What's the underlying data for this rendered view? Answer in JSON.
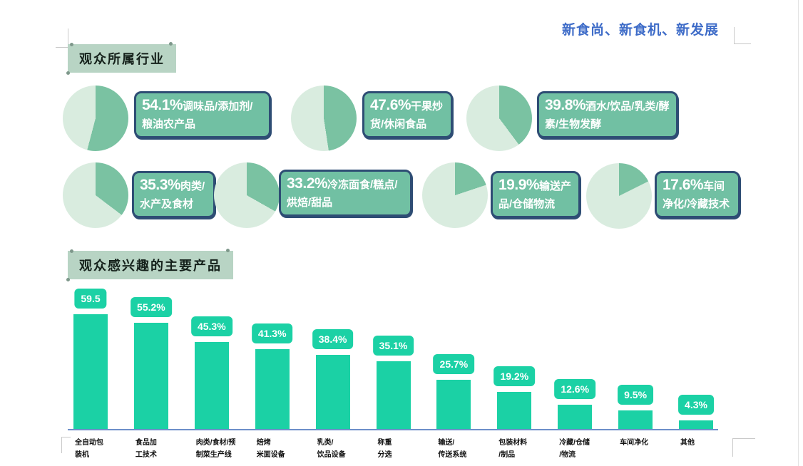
{
  "page": {
    "slogan": "新食尚、新食机、新发展"
  },
  "sections": {
    "industries_title": "观众所属行业",
    "products_title": "观众感兴趣的主要产品"
  },
  "colors": {
    "slogan_text": "#3e6cc8",
    "banner_fill": "#b8d4c4",
    "pie_dark": "#7ac2a2",
    "pie_light": "#d9ecdf",
    "callout_fill": "#71c0a3",
    "callout_border": "#2e4d74",
    "bar_fill": "#1bd1a5",
    "axis_line": "#6d8fc9"
  },
  "chart_data": [
    {
      "type": "pie",
      "title": "观众所属行业",
      "items": [
        {
          "pct": "54.1%",
          "value": 54.1,
          "label": "调味品/添加剂/粮油农产品"
        },
        {
          "pct": "47.6%",
          "value": 47.6,
          "label": "干果炒货/休闲食品"
        },
        {
          "pct": "39.8%",
          "value": 39.8,
          "label": "酒水/饮品/乳类/酵素/生物发酵"
        },
        {
          "pct": "35.3%",
          "value": 35.3,
          "label": "肉类/水产及食材"
        },
        {
          "pct": "33.2%",
          "value": 33.2,
          "label": "冷冻面食/糕点/烘焙/甜品"
        },
        {
          "pct": "19.9%",
          "value": 19.9,
          "label": "输送产品/仓储物流"
        },
        {
          "pct": "17.6%",
          "value": 17.6,
          "label": "车间净化/冷藏技术"
        }
      ]
    },
    {
      "type": "bar",
      "title": "观众感兴趣的主要产品",
      "categories": [
        "全自动包\n装机",
        "食品加\n工技术",
        "肉类/食材/预\n制菜生产线",
        "焙烤\n米面设备",
        "乳类/\n饮品设备",
        "称重\n分选",
        "输送/\n传送系统",
        "包装材料\n/制品",
        "冷藏/仓储\n/物流",
        "车间净化",
        "其他"
      ],
      "values": [
        59.5,
        55.2,
        45.3,
        41.3,
        38.4,
        35.1,
        25.7,
        19.2,
        12.6,
        9.5,
        4.3
      ],
      "value_labels": [
        "59.5",
        "55.2%",
        "45.3%",
        "41.3%",
        "38.4%",
        "35.1%",
        "25.7%",
        "19.2%",
        "12.6%",
        "9.5%",
        "4.3%"
      ],
      "ylim": [
        0,
        65
      ],
      "grid": false,
      "legend_position": "none"
    }
  ]
}
